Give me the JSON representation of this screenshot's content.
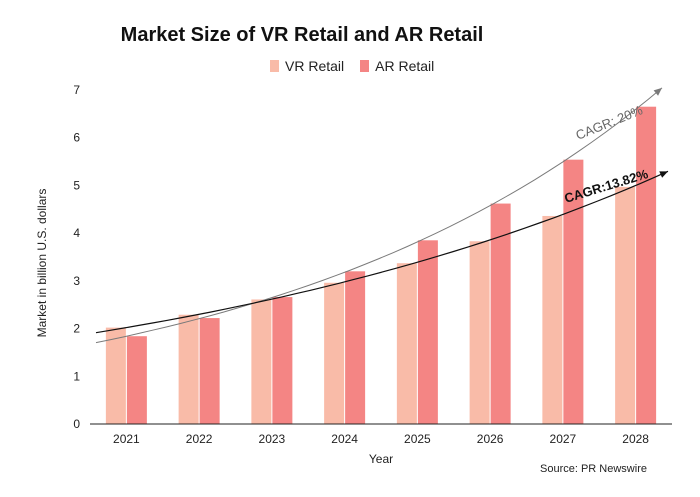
{
  "chart_data": {
    "type": "bar",
    "title": "Market Size of VR Retail and AR Retail",
    "xlabel": "Year",
    "ylabel": "Market in billion U.S. dollars",
    "ylim": [
      0,
      7
    ],
    "yticks": [
      0,
      1,
      2,
      3,
      4,
      5,
      6,
      7
    ],
    "grid": false,
    "legend_position": "top",
    "categories": [
      "2021",
      "2022",
      "2023",
      "2024",
      "2025",
      "2026",
      "2027",
      "2028"
    ],
    "series": [
      {
        "name": "VR Retail",
        "color": "#f9bba8",
        "values": [
          2.02,
          2.29,
          2.61,
          2.96,
          3.37,
          3.83,
          4.36,
          4.97
        ]
      },
      {
        "name": "AR Retail",
        "color": "#f48584",
        "values": [
          1.84,
          2.22,
          2.66,
          3.2,
          3.85,
          4.62,
          5.54,
          6.65
        ]
      }
    ],
    "annotations": [
      {
        "text": "CAGR: 20%",
        "color": "#666666",
        "bold": false
      },
      {
        "text": "CAGR:13.82%",
        "color": "#111111",
        "bold": true
      }
    ],
    "source": "Source: PR Newswire"
  }
}
